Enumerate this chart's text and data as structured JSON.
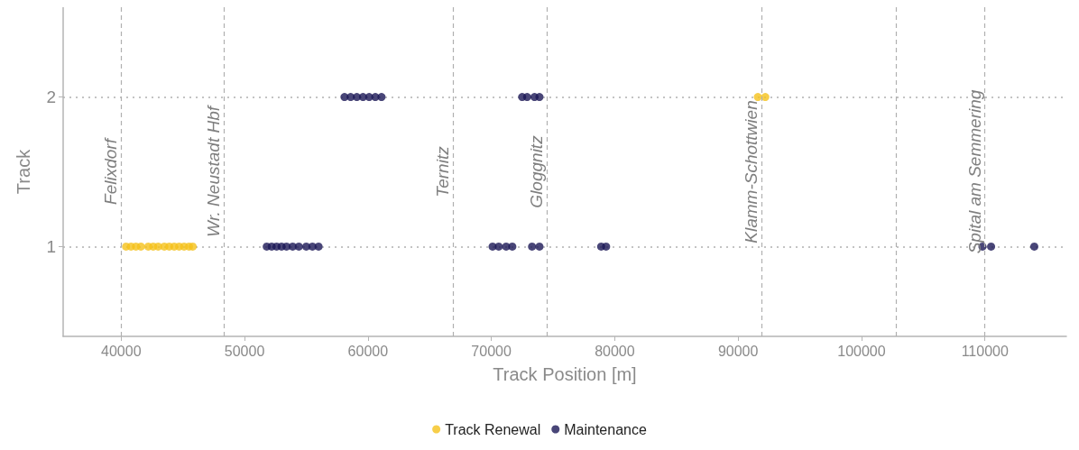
{
  "chart_data": {
    "type": "scatter",
    "xlabel": "Track Position [m]",
    "ylabel": "Track",
    "xlim": [
      35300,
      116600
    ],
    "xticks": [
      40000,
      50000,
      60000,
      70000,
      80000,
      90000,
      100000,
      110000
    ],
    "ylim": [
      0.4,
      2.6
    ],
    "yticks": [
      1,
      2
    ],
    "grid": "y",
    "legend": "bottom",
    "marker": "circle",
    "series": [
      {
        "name": "Track Renewal",
        "color": "#f5c21b",
        "x": [
          40400,
          40800,
          41200,
          41600,
          42200,
          42600,
          43000,
          43500,
          43900,
          44300,
          44700,
          45100,
          45500,
          45800,
          91600,
          92200
        ],
        "values": [
          1,
          1,
          1,
          1,
          1,
          1,
          1,
          1,
          1,
          1,
          1,
          1,
          1,
          1,
          2,
          2
        ]
      },
      {
        "name": "Maintenance",
        "color": "#1c1856",
        "x": [
          51800,
          52200,
          52600,
          53000,
          53400,
          53900,
          54400,
          55000,
          55500,
          56000,
          70100,
          70600,
          71200,
          71700,
          73300,
          73900,
          78900,
          79300,
          109800,
          110500,
          114000,
          58100,
          58600,
          59100,
          59600,
          60100,
          60600,
          61100,
          72500,
          72900,
          73500,
          73900
        ],
        "values": [
          1,
          1,
          1,
          1,
          1,
          1,
          1,
          1,
          1,
          1,
          1,
          1,
          1,
          1,
          1,
          1,
          1,
          1,
          1,
          1,
          1,
          2,
          2,
          2,
          2,
          2,
          2,
          2,
          2,
          2,
          2,
          2
        ]
      }
    ],
    "ref_lines": [
      {
        "axis": "x",
        "value": 40000,
        "label": "Felixdorf"
      },
      {
        "axis": "x",
        "value": 48300,
        "label": "Wr. Neustadt Hbf"
      },
      {
        "axis": "x",
        "value": 66900,
        "label": "Ternitz"
      },
      {
        "axis": "x",
        "value": 74500,
        "label": "Gloggnitz"
      },
      {
        "axis": "x",
        "value": 91900,
        "label": "Klamm-Schottwien"
      },
      {
        "axis": "x",
        "value": 102800,
        "label": null
      },
      {
        "axis": "x",
        "value": 110000,
        "label": "Spital am Semmering"
      }
    ]
  }
}
